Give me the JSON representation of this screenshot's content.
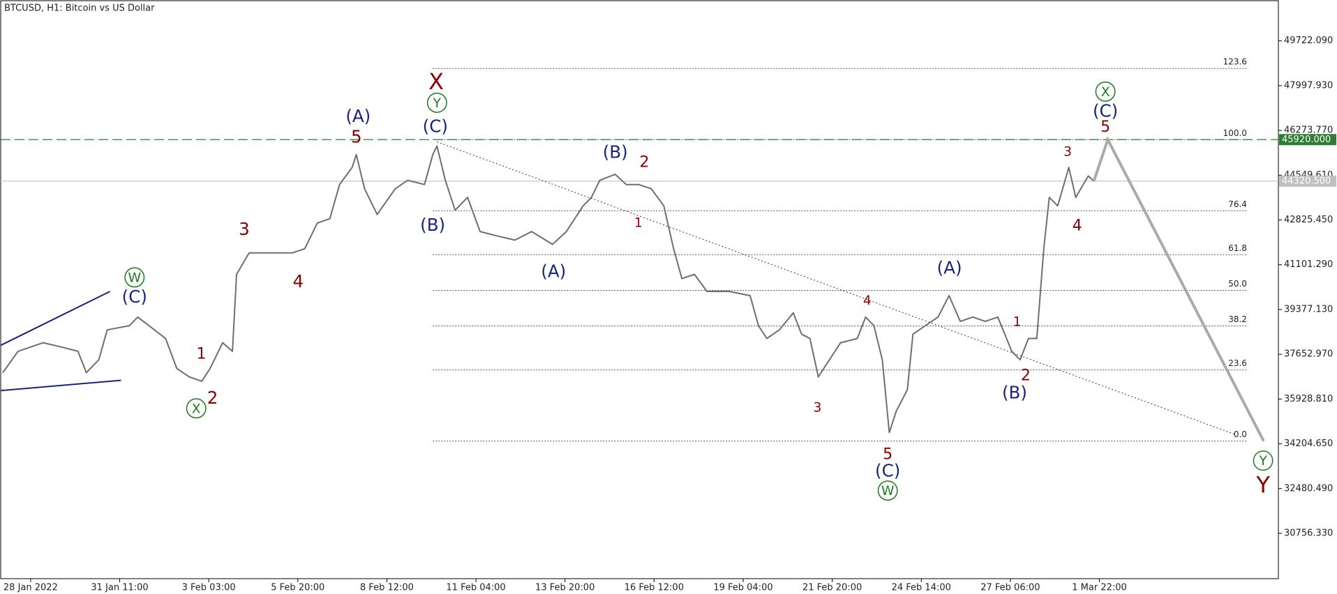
{
  "chart_data": {
    "type": "line",
    "title": "BTCUSD, H1:  Bitcoin vs US Dollar",
    "color": "#6e6e6e",
    "x": [
      -20,
      -9,
      9,
      22,
      34,
      40,
      49,
      55,
      71,
      77,
      89,
      97,
      105,
      114,
      123,
      129,
      138,
      145,
      148,
      157,
      169,
      188,
      197,
      206,
      215,
      222,
      231,
      234,
      240,
      249,
      262,
      271,
      283,
      289,
      292,
      298,
      305,
      314,
      323,
      335,
      348,
      360,
      375,
      385,
      397,
      403,
      409,
      420,
      428,
      437,
      446,
      455,
      462,
      468,
      477,
      486,
      502,
      517,
      523,
      529,
      538,
      548,
      554,
      560,
      566,
      572,
      582,
      594,
      600,
      606,
      612,
      617,
      622,
      630,
      634,
      643,
      652,
      660,
      668,
      677,
      686,
      695,
      705,
      711,
      717,
      723,
      728,
      732,
      738,
      746,
      751,
      760,
      764
    ],
    "values": [
      36945,
      37768,
      38098,
      37933,
      37768,
      36945,
      37439,
      38592,
      38756,
      39086,
      38592,
      38262,
      37110,
      36781,
      36616,
      37110,
      38098,
      37768,
      40732,
      41555,
      41555,
      41555,
      41720,
      42708,
      42873,
      44190,
      44848,
      45342,
      44025,
      43037,
      44025,
      44354,
      44190,
      45342,
      45672,
      44354,
      43202,
      43696,
      42379,
      42214,
      42049,
      42379,
      41885,
      42379,
      43367,
      43696,
      44354,
      44585,
      44190,
      44190,
      44025,
      43367,
      41720,
      40567,
      40732,
      40074,
      40074,
      39909,
      38756,
      38262,
      38592,
      39250,
      38427,
      38262,
      36781,
      37275,
      38098,
      38262,
      39086,
      38756,
      37439,
      34640,
      35463,
      36287,
      38427,
      38756,
      39086,
      39909,
      38921,
      39086,
      38921,
      39086,
      37768,
      37439,
      38262,
      38262,
      41720,
      43696,
      43367,
      44848,
      43696,
      44519,
      44320
    ],
    "xlim": [
      -21.5,
      896.6
    ],
    "ylim": [
      29011,
      51270
    ],
    "xticks": [
      {
        "value": 0,
        "label": "28 Jan 2022"
      },
      {
        "value": 64,
        "label": "31 Jan 11:00"
      },
      {
        "value": 128,
        "label": "3 Feb 03:00"
      },
      {
        "value": 192,
        "label": "5 Feb 20:00"
      },
      {
        "value": 256,
        "label": "8 Feb 12:00"
      },
      {
        "value": 320,
        "label": "11 Feb 04:00"
      },
      {
        "value": 384,
        "label": "13 Feb 20:00"
      },
      {
        "value": 448,
        "label": "16 Feb 12:00"
      },
      {
        "value": 512,
        "label": "19 Feb 04:00"
      },
      {
        "value": 576,
        "label": "21 Feb 20:00"
      },
      {
        "value": 640,
        "label": "24 Feb 14:00"
      },
      {
        "value": 704,
        "label": "27 Feb 06:00"
      },
      {
        "value": 768,
        "label": "1 Mar 22:00"
      }
    ],
    "yticks": [
      {
        "value": 49722.09,
        "label": "49722.090"
      },
      {
        "value": 47997.93,
        "label": "47997.930"
      },
      {
        "value": 46273.77,
        "label": "46273.770"
      },
      {
        "value": 44549.61,
        "label": "44549.610"
      },
      {
        "value": 42825.45,
        "label": "42825.450"
      },
      {
        "value": 41101.29,
        "label": "41101.290"
      },
      {
        "value": 39377.13,
        "label": "39377.130"
      },
      {
        "value": 37652.97,
        "label": "37652.970"
      },
      {
        "value": 35928.81,
        "label": "35928.810"
      },
      {
        "value": 34204.65,
        "label": "34204.650"
      },
      {
        "value": 32480.49,
        "label": "32480.490"
      },
      {
        "value": 30756.33,
        "label": "30756.330"
      }
    ],
    "levels": [
      {
        "value": 45920,
        "label": "45920.000",
        "color": "#2e7d32",
        "style": "dashed"
      },
      {
        "value": 44320.5,
        "label": "44320.500",
        "color": "#c0c0c0",
        "style": "solid"
      }
    ],
    "fib": {
      "x": [
        289,
        874
      ],
      "low": 34310,
      "high": 45920,
      "levels": [
        {
          "value": 123.6,
          "label": "123.6"
        },
        {
          "value": 100,
          "label": "100.0"
        },
        76.4,
        61.8,
        {
          "value": 50,
          "label": "50.0"
        },
        38.2,
        23.6,
        {
          "value": 0,
          "label": "0.0"
        }
      ]
    },
    "trendlines": [
      {
        "x": [
          292,
          865
        ],
        "values": [
          45836,
          34574
        ],
        "color": "#333333",
        "style": "dotted",
        "width": 1
      },
      {
        "x": [
          -21.5,
          57
        ],
        "values": [
          37999,
          40074
        ],
        "color": "#1a237e",
        "style": "solid",
        "width": 2
      },
      {
        "x": [
          -21.5,
          65
        ],
        "values": [
          36254,
          36649
        ],
        "color": "#1a237e",
        "style": "solid",
        "width": 2
      },
      {
        "x": [
          764,
          774,
          886
        ],
        "values": [
          44320,
          45920,
          34311
        ],
        "color": "#aaaaaa",
        "style": "solid",
        "width": 4
      }
    ],
    "annotations": [
      {
        "text": "(C)",
        "color": "#1a237e"
      },
      {
        "text": "W",
        "color": "#1e7b1e",
        "circled": true
      },
      {
        "text": "1",
        "color": "#8b0000"
      },
      {
        "text": "2",
        "color": "#8b0000"
      },
      {
        "text": "X",
        "color": "#1e7b1e",
        "circled": true
      },
      {
        "text": "3",
        "color": "#8b0000"
      },
      {
        "text": "4",
        "color": "#8b0000"
      },
      {
        "text": "(A)",
        "color": "#1a237e"
      },
      {
        "text": "5",
        "color": "#8b0000"
      },
      {
        "text": "X",
        "color": "#8b0000"
      },
      {
        "text": "Y",
        "color": "#1e7b1e",
        "circled": true
      },
      {
        "text": "(C)",
        "color": "#1a237e"
      },
      {
        "text": "(B)",
        "color": "#1a237e"
      },
      {
        "text": "(A)",
        "color": "#1a237e"
      },
      {
        "text": "(B)",
        "color": "#1a237e"
      },
      {
        "text": "2",
        "color": "#8b0000"
      },
      {
        "text": "1",
        "color": "#8b0000"
      },
      {
        "text": "4",
        "color": "#8b0000"
      },
      {
        "text": "3",
        "color": "#8b0000"
      },
      {
        "text": "5",
        "color": "#8b0000"
      },
      {
        "text": "(C)",
        "color": "#1a237e"
      },
      {
        "text": "W",
        "color": "#1e7b1e",
        "circled": true
      },
      {
        "text": "(A)",
        "color": "#1a237e"
      },
      {
        "text": "1",
        "color": "#8b0000"
      },
      {
        "text": "2",
        "color": "#8b0000"
      },
      {
        "text": "(B)",
        "color": "#1a237e"
      },
      {
        "text": "3",
        "color": "#8b0000"
      },
      {
        "text": "4",
        "color": "#8b0000"
      },
      {
        "text": "5",
        "color": "#8b0000"
      },
      {
        "text": "(C)",
        "color": "#1a237e"
      },
      {
        "text": "X",
        "color": "#1e7b1e",
        "circled": true
      },
      {
        "text": "Y",
        "color": "#1e7b1e",
        "circled": true
      },
      {
        "text": "Y",
        "color": "#8b0000"
      }
    ]
  }
}
